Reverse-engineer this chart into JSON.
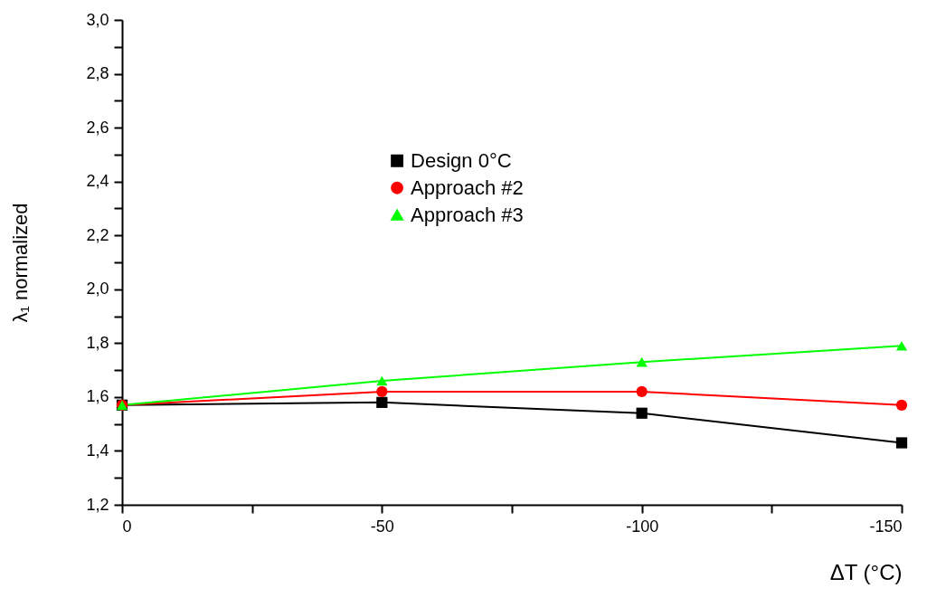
{
  "chart_data": {
    "type": "line",
    "xlabel": "ΔT (°C)",
    "ylabel": "λ₁ normalized",
    "x": [
      0,
      -50,
      -100,
      -150
    ],
    "series": [
      {
        "name": "Design 0°C",
        "color": "#000000",
        "marker": "square",
        "values": [
          1.57,
          1.58,
          1.54,
          1.43
        ]
      },
      {
        "name": "Approach #2",
        "color": "#ff0000",
        "marker": "circle",
        "values": [
          1.57,
          1.62,
          1.62,
          1.57
        ]
      },
      {
        "name": "Approach #3",
        "color": "#00ff00",
        "marker": "triangle",
        "values": [
          1.57,
          1.66,
          1.73,
          1.79
        ]
      }
    ],
    "xlim": [
      0,
      -150
    ],
    "xticks": [
      0,
      {
        "value": -25,
        "label": null
      },
      -50,
      {
        "value": -75,
        "label": null
      },
      -100,
      {
        "value": -125,
        "label": null
      },
      -150
    ],
    "ylim": [
      1.2,
      3.0
    ],
    "yticks": [
      {
        "value": 1.2,
        "label": "1,2"
      },
      {
        "value": 1.3,
        "label": null
      },
      {
        "value": 1.4,
        "label": "1,4"
      },
      {
        "value": 1.5,
        "label": null
      },
      {
        "value": 1.6,
        "label": "1,6"
      },
      {
        "value": 1.7,
        "label": null
      },
      {
        "value": 1.8,
        "label": "1,8"
      },
      {
        "value": 1.9,
        "label": null
      },
      {
        "value": 2.0,
        "label": "2,0"
      },
      {
        "value": 2.1,
        "label": null
      },
      {
        "value": 2.2,
        "label": "2,2"
      },
      {
        "value": 2.3,
        "label": null
      },
      {
        "value": 2.4,
        "label": "2,4"
      },
      {
        "value": 2.5,
        "label": null
      },
      {
        "value": 2.6,
        "label": "2,6"
      },
      {
        "value": 2.7,
        "label": null
      },
      {
        "value": 2.8,
        "label": "2,8"
      },
      {
        "value": 2.9,
        "label": null
      },
      {
        "value": 3.0,
        "label": "3,0"
      }
    ],
    "legend": "top",
    "line_style": "solid"
  }
}
